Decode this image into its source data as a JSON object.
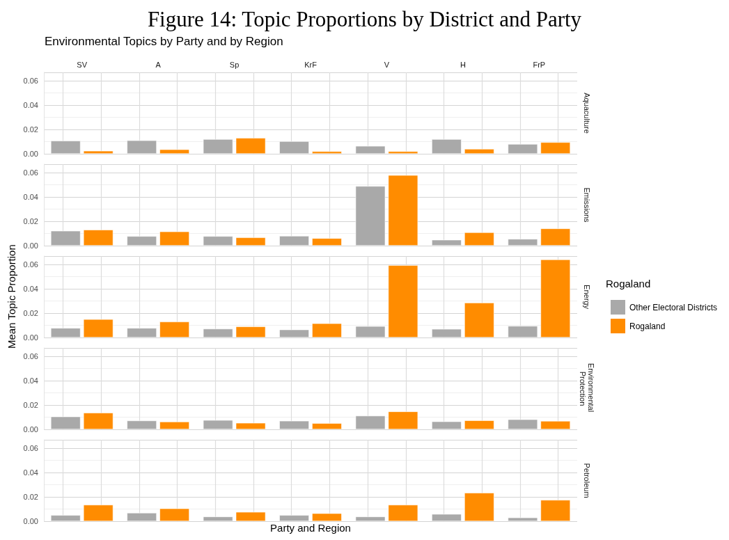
{
  "chart_data": [
    {
      "type": "bar",
      "title": "Figure 14: Topic Proportions by District and Party",
      "subtitle": "Environmental Topics by Party and by Region",
      "annotations": [
        "Aquaculture"
      ],
      "categories": [
        "SV",
        "A",
        "Sp",
        "KrF",
        "V",
        "H",
        "FrP"
      ],
      "series": [
        {
          "color": "#a9a9a9",
          "values": [
            0.0107,
            0.011,
            0.012,
            0.0103,
            0.0064,
            0.012,
            0.008
          ]
        },
        {
          "color": "#ff8c00",
          "values": [
            0.0024,
            0.0036,
            0.013,
            0.002,
            0.002,
            0.004,
            0.0095
          ]
        }
      ],
      "ylim": [
        0,
        0.067
      ],
      "yticks": [
        {
          "value": 0,
          "label": "0.00"
        },
        {
          "value": 0.02,
          "label": "0.02"
        },
        {
          "value": 0.04,
          "label": "0.04"
        },
        {
          "value": 0.06,
          "label": "0.06"
        }
      ],
      "grid": true
    },
    {
      "type": "bar",
      "annotations": [
        "Emissions"
      ],
      "categories": [
        null,
        null,
        null,
        null,
        null,
        null,
        null
      ],
      "series": [
        {
          "color": "#a9a9a9",
          "values": [
            0.0122,
            0.0078,
            0.0078,
            0.008,
            0.049,
            0.0048,
            0.0055
          ]
        },
        {
          "color": "#ff8c00",
          "values": [
            0.0131,
            0.0116,
            0.0067,
            0.0061,
            0.058,
            0.0109,
            0.0141
          ]
        }
      ],
      "ylim": [
        0,
        0.067
      ],
      "yticks": [
        {
          "value": 0,
          "label": "0.00"
        },
        {
          "value": 0.02,
          "label": "0.02"
        },
        {
          "value": 0.04,
          "label": "0.04"
        },
        {
          "value": 0.06,
          "label": "0.06"
        }
      ],
      "grid": true
    },
    {
      "type": "bar",
      "ylabel": "Mean Topic Proportion",
      "legend_title": "Rogaland",
      "legend": "right",
      "annotations": [
        "Energy"
      ],
      "categories": [
        null,
        null,
        null,
        null,
        null,
        null,
        null
      ],
      "series": [
        {
          "name": "Other Electoral Districts",
          "color": "#a9a9a9",
          "values": [
            0.0078,
            0.0078,
            0.0072,
            0.0065,
            0.0093,
            0.007,
            0.0095
          ]
        },
        {
          "name": "Rogaland",
          "color": "#ff8c00",
          "values": [
            0.015,
            0.013,
            0.009,
            0.0116,
            0.0594,
            0.0286,
            0.0642
          ]
        }
      ],
      "ylim": [
        0,
        0.067
      ],
      "yticks": [
        {
          "value": 0,
          "label": "0.00"
        },
        {
          "value": 0.02,
          "label": "0.02"
        },
        {
          "value": 0.04,
          "label": "0.04"
        },
        {
          "value": 0.06,
          "label": "0.06"
        }
      ],
      "grid": true
    },
    {
      "type": "bar",
      "annotations": [
        "Environmental Protection"
      ],
      "categories": [
        null,
        null,
        null,
        null,
        null,
        null,
        null
      ],
      "series": [
        {
          "color": "#a9a9a9",
          "values": [
            0.0105,
            0.0072,
            0.0076,
            0.007,
            0.0112,
            0.0065,
            0.0082
          ]
        },
        {
          "color": "#ff8c00",
          "values": [
            0.0137,
            0.0063,
            0.0053,
            0.0051,
            0.0147,
            0.0074,
            0.0069
          ]
        }
      ],
      "ylim": [
        0,
        0.067
      ],
      "yticks": [
        {
          "value": 0,
          "label": "0.00"
        },
        {
          "value": 0.02,
          "label": "0.02"
        },
        {
          "value": 0.04,
          "label": "0.04"
        },
        {
          "value": 0.06,
          "label": "0.06"
        }
      ],
      "grid": true
    },
    {
      "type": "bar",
      "xlabel": "Party and Region",
      "annotations": [
        "Petroleum"
      ],
      "categories": [
        null,
        null,
        null,
        null,
        null,
        null,
        null
      ],
      "series": [
        {
          "color": "#a9a9a9",
          "values": [
            0.005,
            0.0069,
            0.0038,
            0.005,
            0.0038,
            0.0059,
            0.003
          ]
        },
        {
          "color": "#ff8c00",
          "values": [
            0.0135,
            0.0105,
            0.0076,
            0.0065,
            0.0135,
            0.0234,
            0.0175
          ]
        }
      ],
      "ylim": [
        0,
        0.067
      ],
      "yticks": [
        {
          "value": 0,
          "label": "0.00"
        },
        {
          "value": 0.02,
          "label": "0.02"
        },
        {
          "value": 0.04,
          "label": "0.04"
        },
        {
          "value": 0.06,
          "label": "0.06"
        }
      ],
      "grid": true
    }
  ]
}
